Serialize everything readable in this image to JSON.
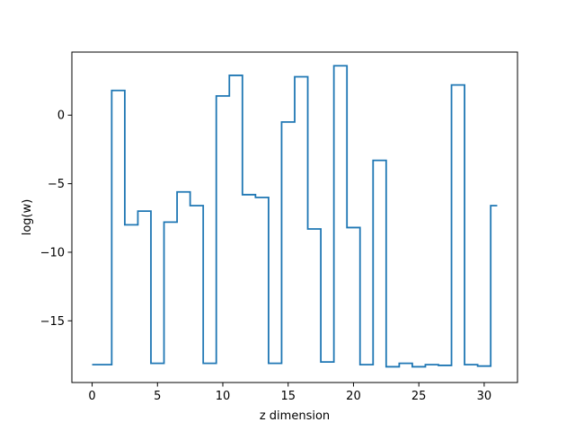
{
  "chart_data": {
    "type": "line",
    "drawstyle": "steps-mid",
    "xlabel": "z dimension",
    "ylabel": "log(w)",
    "xlim": [
      -1.55,
      32.55
    ],
    "ylim": [
      -19.5,
      4.6
    ],
    "xticks": [
      0,
      5,
      10,
      15,
      20,
      25,
      30
    ],
    "yticks": [
      -15,
      -10,
      -5,
      0
    ],
    "ytick_labels": [
      "−15",
      "−10",
      "−5",
      "0"
    ],
    "grid": false,
    "series": [
      {
        "color": "#1f77b4",
        "x": [
          0,
          1,
          2,
          3,
          4,
          5,
          6,
          7,
          8,
          9,
          10,
          11,
          12,
          13,
          14,
          15,
          16,
          17,
          18,
          19,
          20,
          21,
          22,
          23,
          24,
          25,
          26,
          27,
          28,
          29,
          30,
          31
        ],
        "y": [
          -18.2,
          -18.2,
          1.8,
          -8.0,
          -7.0,
          -18.1,
          -7.8,
          -5.6,
          -6.6,
          -18.1,
          1.4,
          2.9,
          -5.8,
          -6.0,
          -18.1,
          -0.5,
          2.8,
          -8.3,
          -18.0,
          3.6,
          -8.2,
          -18.2,
          -3.3,
          -18.35,
          -18.1,
          -18.35,
          -18.2,
          -18.25,
          2.2,
          -18.2,
          -18.3,
          -6.6
        ]
      }
    ]
  }
}
